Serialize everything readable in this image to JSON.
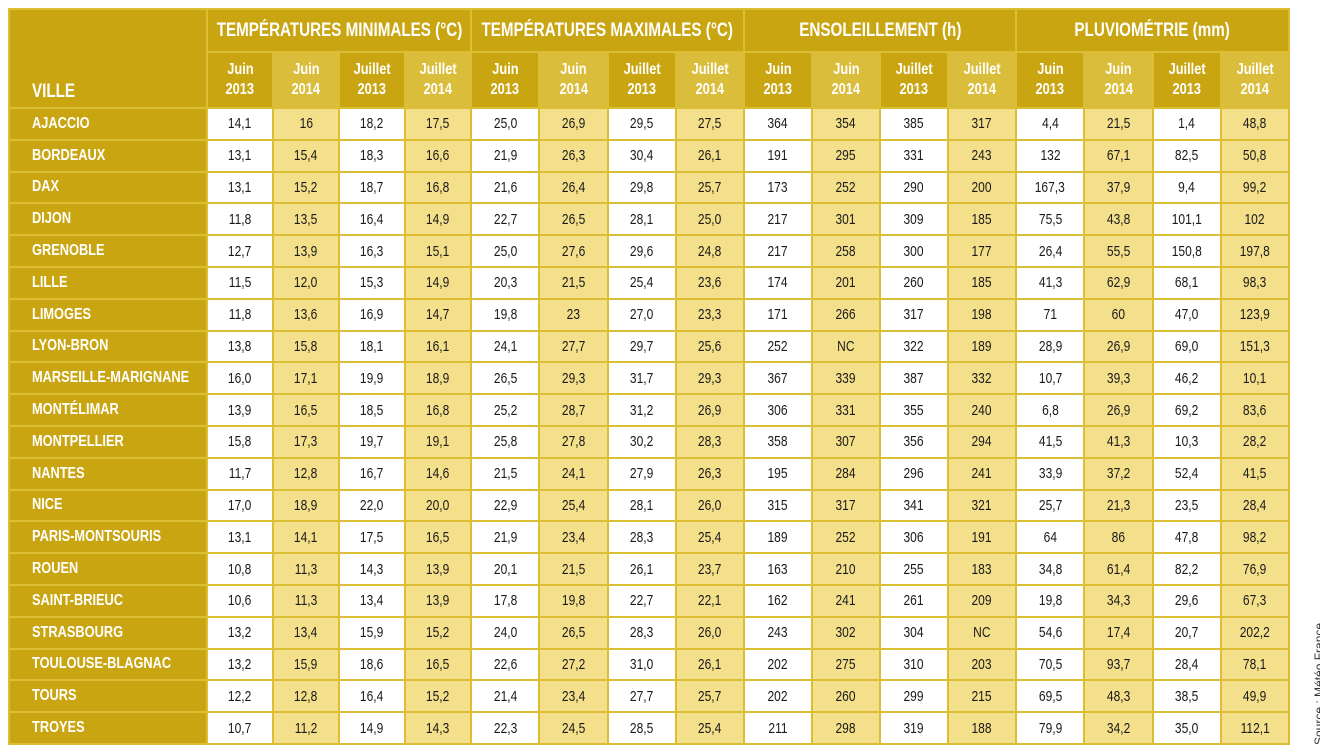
{
  "header": {
    "city_label": "VILLE",
    "groups": [
      {
        "title": "TEMPÉRATURES MINIMALES (°C)",
        "columns": [
          {
            "month": "Juin",
            "year": "2013"
          },
          {
            "month": "Juin",
            "year": "2014"
          },
          {
            "month": "Juillet",
            "year": "2013"
          },
          {
            "month": "Juillet",
            "year": "2014"
          }
        ]
      },
      {
        "title": "TEMPÉRATURES MAXIMALES (°C)",
        "columns": [
          {
            "month": "Juin",
            "year": "2013"
          },
          {
            "month": "Juin",
            "year": "2014"
          },
          {
            "month": "Juillet",
            "year": "2013"
          },
          {
            "month": "Juillet",
            "year": "2014"
          }
        ]
      },
      {
        "title": "ENSOLEILLEMENT (h)",
        "columns": [
          {
            "month": "Juin",
            "year": "2013"
          },
          {
            "month": "Juin",
            "year": "2014"
          },
          {
            "month": "Juillet",
            "year": "2013"
          },
          {
            "month": "Juillet",
            "year": "2014"
          }
        ]
      },
      {
        "title": "PLUVIOMÉTRIE (mm)",
        "columns": [
          {
            "month": "Juin",
            "year": "2013"
          },
          {
            "month": "Juin",
            "year": "2014"
          },
          {
            "month": "Juillet",
            "year": "2013"
          },
          {
            "month": "Juillet",
            "year": "2014"
          }
        ]
      }
    ]
  },
  "rows": [
    {
      "city": "AJACCIO",
      "values": [
        "14,1",
        "16",
        "18,2",
        "17,5",
        "25,0",
        "26,9",
        "29,5",
        "27,5",
        "364",
        "354",
        "385",
        "317",
        "4,4",
        "21,5",
        "1,4",
        "48,8"
      ]
    },
    {
      "city": "BORDEAUX",
      "values": [
        "13,1",
        "15,4",
        "18,3",
        "16,6",
        "21,9",
        "26,3",
        "30,4",
        "26,1",
        "191",
        "295",
        "331",
        "243",
        "132",
        "67,1",
        "82,5",
        "50,8"
      ]
    },
    {
      "city": "DAX",
      "values": [
        "13,1",
        "15,2",
        "18,7",
        "16,8",
        "21,6",
        "26,4",
        "29,8",
        "25,7",
        "173",
        "252",
        "290",
        "200",
        "167,3",
        "37,9",
        "9,4",
        "99,2"
      ]
    },
    {
      "city": "DIJON",
      "values": [
        "11,8",
        "13,5",
        "16,4",
        "14,9",
        "22,7",
        "26,5",
        "28,1",
        "25,0",
        "217",
        "301",
        "309",
        "185",
        "75,5",
        "43,8",
        "101,1",
        "102"
      ]
    },
    {
      "city": "GRENOBLE",
      "values": [
        "12,7",
        "13,9",
        "16,3",
        "15,1",
        "25,0",
        "27,6",
        "29,6",
        "24,8",
        "217",
        "258",
        "300",
        "177",
        "26,4",
        "55,5",
        "150,8",
        "197,8"
      ]
    },
    {
      "city": "LILLE",
      "values": [
        "11,5",
        "12,0",
        "15,3",
        "14,9",
        "20,3",
        "21,5",
        "25,4",
        "23,6",
        "174",
        "201",
        "260",
        "185",
        "41,3",
        "62,9",
        "68,1",
        "98,3"
      ]
    },
    {
      "city": "LIMOGES",
      "values": [
        "11,8",
        "13,6",
        "16,9",
        "14,7",
        "19,8",
        "23",
        "27,0",
        "23,3",
        "171",
        "266",
        "317",
        "198",
        "71",
        "60",
        "47,0",
        "123,9"
      ]
    },
    {
      "city": "LYON-BRON",
      "values": [
        "13,8",
        "15,8",
        "18,1",
        "16,1",
        "24,1",
        "27,7",
        "29,7",
        "25,6",
        "252",
        "NC",
        "322",
        "189",
        "28,9",
        "26,9",
        "69,0",
        "151,3"
      ]
    },
    {
      "city": "MARSEILLE-MARIGNANE",
      "values": [
        "16,0",
        "17,1",
        "19,9",
        "18,9",
        "26,5",
        "29,3",
        "31,7",
        "29,3",
        "367",
        "339",
        "387",
        "332",
        "10,7",
        "39,3",
        "46,2",
        "10,1"
      ]
    },
    {
      "city": "MONTÉLIMAR",
      "values": [
        "13,9",
        "16,5",
        "18,5",
        "16,8",
        "25,2",
        "28,7",
        "31,2",
        "26,9",
        "306",
        "331",
        "355",
        "240",
        "6,8",
        "26,9",
        "69,2",
        "83,6"
      ]
    },
    {
      "city": "MONTPELLIER",
      "values": [
        "15,8",
        "17,3",
        "19,7",
        "19,1",
        "25,8",
        "27,8",
        "30,2",
        "28,3",
        "358",
        "307",
        "356",
        "294",
        "41,5",
        "41,3",
        "10,3",
        "28,2"
      ]
    },
    {
      "city": "NANTES",
      "values": [
        "11,7",
        "12,8",
        "16,7",
        "14,6",
        "21,5",
        "24,1",
        "27,9",
        "26,3",
        "195",
        "284",
        "296",
        "241",
        "33,9",
        "37,2",
        "52,4",
        "41,5"
      ]
    },
    {
      "city": "NICE",
      "values": [
        "17,0",
        "18,9",
        "22,0",
        "20,0",
        "22,9",
        "25,4",
        "28,1",
        "26,0",
        "315",
        "317",
        "341",
        "321",
        "25,7",
        "21,3",
        "23,5",
        "28,4"
      ]
    },
    {
      "city": "PARIS-MONTSOURIS",
      "values": [
        "13,1",
        "14,1",
        "17,5",
        "16,5",
        "21,9",
        "23,4",
        "28,3",
        "25,4",
        "189",
        "252",
        "306",
        "191",
        "64",
        "86",
        "47,8",
        "98,2"
      ]
    },
    {
      "city": "ROUEN",
      "values": [
        "10,8",
        "11,3",
        "14,3",
        "13,9",
        "20,1",
        "21,5",
        "26,1",
        "23,7",
        "163",
        "210",
        "255",
        "183",
        "34,8",
        "61,4",
        "82,2",
        "76,9"
      ]
    },
    {
      "city": "SAINT-BRIEUC",
      "values": [
        "10,6",
        "11,3",
        "13,4",
        "13,9",
        "17,8",
        "19,8",
        "22,7",
        "22,1",
        "162",
        "241",
        "261",
        "209",
        "19,8",
        "34,3",
        "29,6",
        "67,3"
      ]
    },
    {
      "city": "STRASBOURG",
      "values": [
        "13,2",
        "13,4",
        "15,9",
        "15,2",
        "24,0",
        "26,5",
        "28,3",
        "26,0",
        "243",
        "302",
        "304",
        "NC",
        "54,6",
        "17,4",
        "20,7",
        "202,2"
      ]
    },
    {
      "city": "TOULOUSE-BLAGNAC",
      "values": [
        "13,2",
        "15,9",
        "18,6",
        "16,5",
        "22,6",
        "27,2",
        "31,0",
        "26,1",
        "202",
        "275",
        "310",
        "203",
        "70,5",
        "93,7",
        "28,4",
        "78,1"
      ]
    },
    {
      "city": "TOURS",
      "values": [
        "12,2",
        "12,8",
        "16,4",
        "15,2",
        "21,4",
        "23,4",
        "27,7",
        "25,7",
        "202",
        "260",
        "299",
        "215",
        "69,5",
        "48,3",
        "38,5",
        "49,9"
      ]
    },
    {
      "city": "TROYES",
      "values": [
        "10,7",
        "11,2",
        "14,9",
        "14,3",
        "22,3",
        "24,5",
        "28,5",
        "25,4",
        "211",
        "298",
        "319",
        "188",
        "79,9",
        "34,2",
        "35,0",
        "112,1"
      ]
    }
  ],
  "source": "Source : Météo France"
}
